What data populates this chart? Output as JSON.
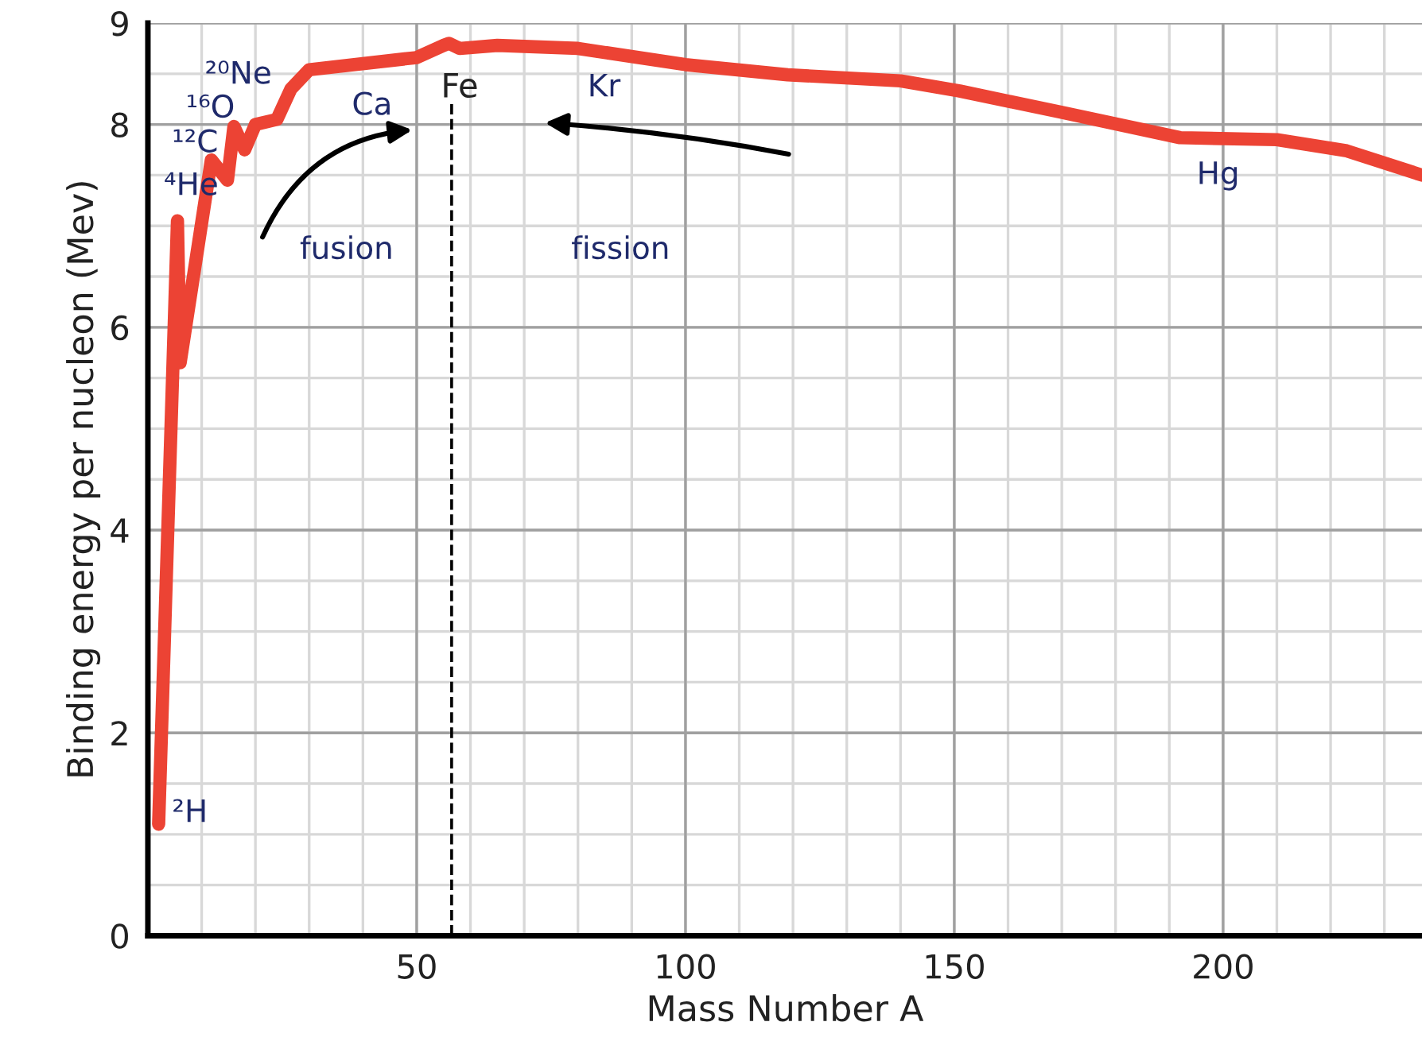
{
  "chart_data": {
    "type": "line",
    "xlabel": "Mass Number A",
    "ylabel": "Binding energy per nucleon (Mev)",
    "x": [
      2,
      5.5,
      6,
      11.8,
      14.8,
      16,
      18,
      20,
      24,
      26.6,
      30,
      50,
      55,
      56,
      58,
      65,
      80,
      100,
      119,
      140,
      151,
      170,
      192,
      210,
      223,
      237
    ],
    "series": [
      {
        "color": "#ec4334",
        "values": [
          1.1,
          7.05,
          5.65,
          7.65,
          7.45,
          7.98,
          7.75,
          8.0,
          8.05,
          8.35,
          8.54,
          8.66,
          8.78,
          8.8,
          8.75,
          8.78,
          8.75,
          8.59,
          8.49,
          8.43,
          8.33,
          8.12,
          7.87,
          7.85,
          7.74,
          7.5
        ]
      }
    ],
    "xlim": [
      0,
      237
    ],
    "ylim": [
      0,
      9
    ],
    "xticks": [
      {
        "value": 10,
        "label": null
      },
      {
        "value": 20,
        "label": null
      },
      {
        "value": 30,
        "label": null
      },
      {
        "value": 40,
        "label": null
      },
      50,
      {
        "value": 60,
        "label": null
      },
      {
        "value": 70,
        "label": null
      },
      {
        "value": 80,
        "label": null
      },
      {
        "value": 90,
        "label": null
      },
      100,
      {
        "value": 110,
        "label": null
      },
      {
        "value": 120,
        "label": null
      },
      {
        "value": 130,
        "label": null
      },
      {
        "value": 140,
        "label": null
      },
      150,
      {
        "value": 160,
        "label": null
      },
      {
        "value": 170,
        "label": null
      },
      {
        "value": 180,
        "label": null
      },
      {
        "value": 190,
        "label": null
      },
      200,
      {
        "value": 210,
        "label": null
      },
      {
        "value": 220,
        "label": null
      },
      {
        "value": 230,
        "label": null
      }
    ],
    "yticks": [
      0,
      {
        "value": 0.5,
        "label": null
      },
      {
        "value": 1,
        "label": null
      },
      {
        "value": 1.5,
        "label": null
      },
      2,
      {
        "value": 2.5,
        "label": null
      },
      {
        "value": 3,
        "label": null
      },
      {
        "value": 3.5,
        "label": null
      },
      4,
      {
        "value": 4.5,
        "label": null
      },
      {
        "value": 5,
        "label": null
      },
      {
        "value": 5.5,
        "label": null
      },
      6,
      {
        "value": 6.5,
        "label": null
      },
      {
        "value": 7,
        "label": null
      },
      {
        "value": 7.5,
        "label": null
      },
      8,
      {
        "value": 8.5,
        "label": null
      },
      9
    ],
    "grid": true,
    "marker": "none",
    "line_style": "solid",
    "ref_lines": [
      {
        "axis": "x",
        "value": 56.5,
        "label": "Fe",
        "color": "#000000",
        "line_style": "dashed"
      }
    ],
    "annotations": [
      "²H",
      "⁴He",
      "¹²C",
      "¹⁶O",
      "²⁰Ne",
      "Ca",
      "Kr",
      "Hg",
      "fusion",
      "fission"
    ]
  }
}
